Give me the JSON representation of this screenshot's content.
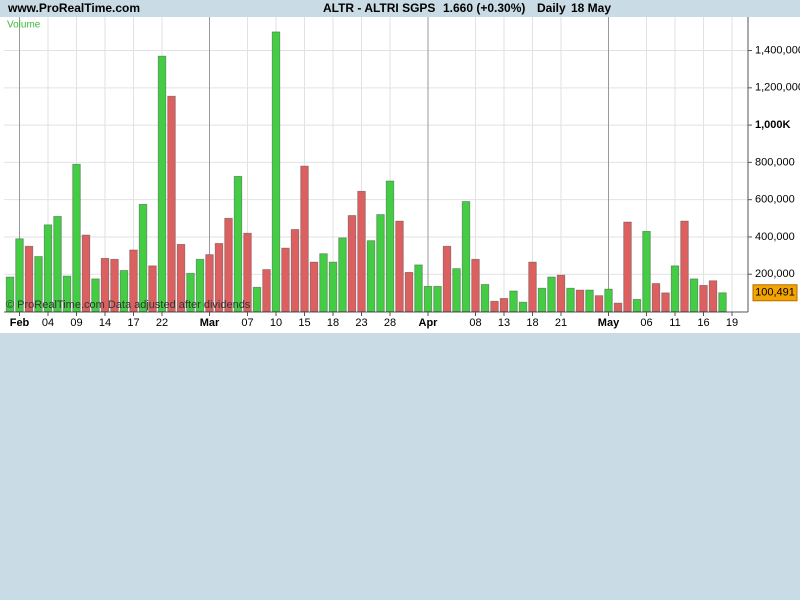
{
  "chart_data": {
    "type": "bar",
    "source": "www.ProRealTime.com",
    "title": "ALTR - ALTRI SGPS",
    "subtitle": "1.660 (+0.30%)",
    "period": "Daily",
    "date": "18 May",
    "y_label": "Volume",
    "note": "© ProRealTime.com  Data adjusted after dividends",
    "categories": [
      null,
      "Feb",
      null,
      null,
      "04",
      null,
      null,
      "09",
      null,
      null,
      "14",
      null,
      null,
      "17",
      null,
      null,
      "22",
      null,
      null,
      null,
      null,
      "Mar",
      null,
      null,
      null,
      "07",
      null,
      null,
      "10",
      null,
      null,
      "15",
      null,
      null,
      "18",
      null,
      null,
      "23",
      null,
      null,
      "28",
      null,
      null,
      null,
      "Apr",
      null,
      null,
      null,
      null,
      "08",
      null,
      null,
      "13",
      null,
      null,
      "18",
      null,
      null,
      "21",
      null,
      null,
      null,
      null,
      "May",
      null,
      null,
      null,
      "06",
      null,
      null,
      "11",
      null,
      null,
      "16",
      null,
      null,
      "19"
    ],
    "values": [
      185000,
      390000,
      350000,
      295000,
      465000,
      510000,
      190000,
      790000,
      410000,
      175000,
      285000,
      280000,
      220000,
      330000,
      575000,
      245000,
      1370000,
      1155000,
      360000,
      205000,
      280000,
      305000,
      365000,
      500000,
      725000,
      420000,
      130000,
      225000,
      1500000,
      340000,
      440000,
      780000,
      265000,
      310000,
      265000,
      395000,
      515000,
      645000,
      380000,
      520000,
      700000,
      485000,
      210000,
      250000,
      135000,
      135000,
      350000,
      230000,
      590000,
      280000,
      145000,
      55000,
      70000,
      110000,
      50000,
      265000,
      125000,
      185000,
      195000,
      125000,
      115000,
      115000,
      85000,
      120000,
      45000,
      480000,
      65000,
      430000,
      150000,
      100000,
      245000,
      485000,
      175000,
      140000,
      165000,
      100491,
      null
    ],
    "colors": [
      "#44cc44",
      "#44cc44",
      "#dd6060",
      "#44cc44",
      "#44cc44",
      "#44cc44",
      "#44cc44",
      "#44cc44",
      "#dd6060",
      "#44cc44",
      "#dd6060",
      "#dd6060",
      "#44cc44",
      "#dd6060",
      "#44cc44",
      "#dd6060",
      "#44cc44",
      "#dd6060",
      "#dd6060",
      "#44cc44",
      "#44cc44",
      "#dd6060",
      "#dd6060",
      "#dd6060",
      "#44cc44",
      "#dd6060",
      "#44cc44",
      "#dd6060",
      "#44cc44",
      "#dd6060",
      "#dd6060",
      "#dd6060",
      "#dd6060",
      "#44cc44",
      "#44cc44",
      "#44cc44",
      "#dd6060",
      "#dd6060",
      "#44cc44",
      "#44cc44",
      "#44cc44",
      "#dd6060",
      "#dd6060",
      "#44cc44",
      "#44cc44",
      "#44cc44",
      "#dd6060",
      "#44cc44",
      "#44cc44",
      "#dd6060",
      "#44cc44",
      "#dd6060",
      "#dd6060",
      "#44cc44",
      "#44cc44",
      "#dd6060",
      "#44cc44",
      "#44cc44",
      "#dd6060",
      "#44cc44",
      "#dd6060",
      "#44cc44",
      "#dd6060",
      "#44cc44",
      "#dd6060",
      "#dd6060",
      "#44cc44",
      "#44cc44",
      "#dd6060",
      "#dd6060",
      "#44cc44",
      "#dd6060",
      "#44cc44",
      "#dd6060",
      "#dd6060",
      "#44cc44",
      null
    ],
    "ylim": [
      0,
      1580000
    ],
    "yticks": [
      {
        "value": 200000,
        "label": "200,000"
      },
      {
        "value": 400000,
        "label": "400,000"
      },
      {
        "value": 600000,
        "label": "600,000"
      },
      {
        "value": 800000,
        "label": "800,000"
      },
      {
        "value": 1000000,
        "label": "1,000K",
        "bold": true
      },
      {
        "value": 1200000,
        "label": "1,200,000"
      },
      {
        "value": 1400000,
        "label": "1,400,000"
      }
    ],
    "last_value": {
      "value": 100491,
      "label": "100,491",
      "color": "#f5a300"
    },
    "grid": true
  }
}
